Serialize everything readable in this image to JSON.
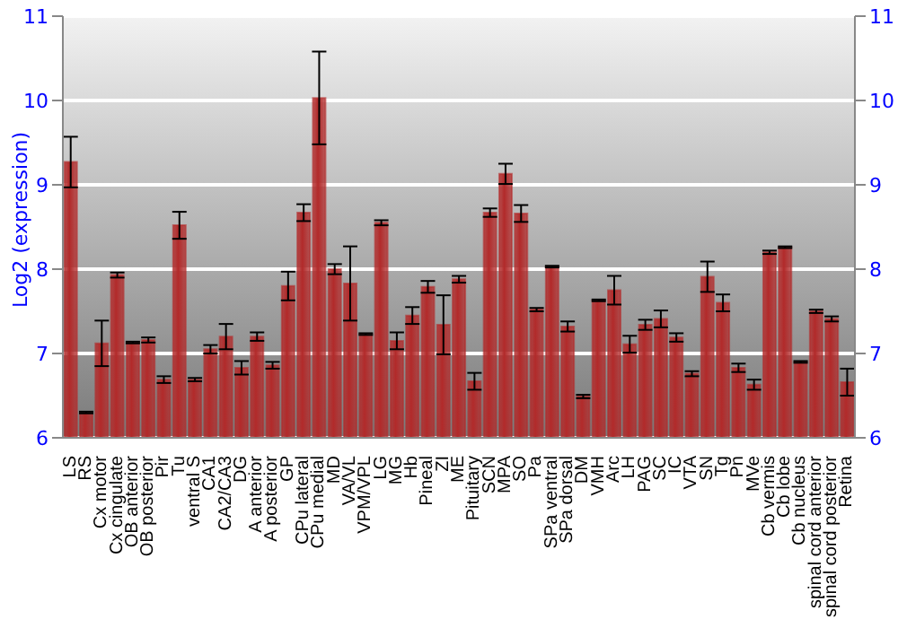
{
  "chart_data": {
    "type": "bar",
    "ylabel": "Log2 (expression)",
    "categories": [
      "LS",
      "RS",
      "Cx motor",
      "Cx cingulate",
      "OB anterior",
      "OB posterior",
      "Pir",
      "Tu",
      "ventral S",
      "CA1",
      "CA2/CA3",
      "DG",
      "A anterior",
      "A posterior",
      "GP",
      "CPu lateral",
      "CPu medial",
      "MD",
      "VA/VL",
      "VPM/VPL",
      "LG",
      "MG",
      "Hb",
      "Pineal",
      "ZI",
      "ME",
      "Pituitary",
      "SCN",
      "MPA",
      "SO",
      "Pa",
      "SPa ventral",
      "SPa dorsal",
      "DM",
      "VMH",
      "Arc",
      "LH",
      "PAG",
      "SC",
      "IC",
      "VTA",
      "SN",
      "Tg",
      "Pn",
      "MVe",
      "Cb vermis",
      "Cb lobe",
      "Cb nucleus",
      "spinal cord anterior",
      "spinal cord posterior",
      "Retina"
    ],
    "values": [
      9.27,
      6.3,
      7.12,
      7.93,
      7.13,
      7.16,
      6.69,
      8.52,
      6.69,
      7.05,
      7.2,
      6.83,
      7.2,
      6.86,
      7.8,
      8.67,
      10.03,
      8.0,
      7.83,
      7.23,
      8.55,
      7.15,
      7.45,
      7.79,
      7.34,
      7.88,
      6.67,
      8.67,
      9.13,
      8.66,
      7.52,
      8.03,
      7.32,
      6.49,
      7.63,
      7.75,
      7.11,
      7.34,
      7.41,
      7.19,
      6.76,
      7.91,
      7.6,
      6.83,
      6.63,
      8.2,
      8.26,
      6.9,
      7.5,
      7.41,
      6.66
    ],
    "errors": [
      0.3,
      0.01,
      0.27,
      0.03,
      0.01,
      0.03,
      0.04,
      0.16,
      0.02,
      0.05,
      0.15,
      0.08,
      0.05,
      0.04,
      0.17,
      0.1,
      0.55,
      0.06,
      0.44,
      0.01,
      0.03,
      0.1,
      0.1,
      0.07,
      0.35,
      0.04,
      0.1,
      0.05,
      0.12,
      0.1,
      0.02,
      0.01,
      0.06,
      0.02,
      0.01,
      0.17,
      0.1,
      0.06,
      0.1,
      0.05,
      0.03,
      0.18,
      0.1,
      0.05,
      0.06,
      0.02,
      0.01,
      0.01,
      0.02,
      0.03,
      0.16
    ],
    "color": "#b22a2a",
    "ylim": [
      6,
      11
    ],
    "yticks": [
      6,
      7,
      8,
      9,
      10,
      11
    ],
    "y2lim": [
      6,
      11
    ],
    "y2ticks": [
      6,
      7,
      8,
      9,
      10,
      11
    ],
    "grid": "y"
  }
}
